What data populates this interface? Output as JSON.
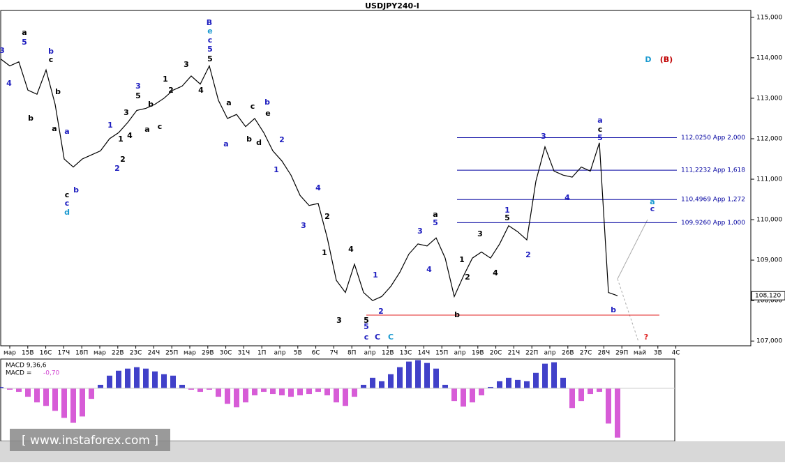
{
  "chart_data": {
    "type": "line",
    "title": "USDJPY240-I",
    "x_labels": [
      "мар",
      "15В",
      "16С",
      "17Ч",
      "18П",
      "мар",
      "22В",
      "23С",
      "24Ч",
      "25П",
      "мар",
      "29В",
      "30С",
      "31Ч",
      "1П",
      "апр",
      "5В",
      "6С",
      "7Ч",
      "8П",
      "апр",
      "12В",
      "13С",
      "14Ч",
      "15П",
      "апр",
      "19В",
      "20С",
      "21Ч",
      "22П",
      "апр",
      "26В",
      "27С",
      "28Ч",
      "29П",
      "май",
      "3В",
      "4С"
    ],
    "series": [
      {
        "color": "#000000",
        "values": [
          113.97,
          113.8,
          113.9,
          113.2,
          113.1,
          113.7,
          112.85,
          111.5,
          111.3,
          111.5,
          111.6,
          111.7,
          112.0,
          112.15,
          112.4,
          112.7,
          112.75,
          112.85,
          113.0,
          113.2,
          113.3,
          113.55,
          113.35,
          113.8,
          112.95,
          112.5,
          112.6,
          112.3,
          112.5,
          112.15,
          111.7,
          111.45,
          111.1,
          110.6,
          110.35,
          110.4,
          109.55,
          108.5,
          108.2,
          108.9,
          108.2,
          108.0,
          108.1,
          108.35,
          108.7,
          109.15,
          109.4,
          109.35,
          109.55,
          109.05,
          108.1,
          108.6,
          109.05,
          109.2,
          109.05,
          109.4,
          109.85,
          109.7,
          109.5,
          110.95,
          111.8,
          111.2,
          111.1,
          111.05,
          111.3,
          111.2,
          111.9,
          108.2,
          108.12
        ]
      }
    ],
    "ylim": [
      106.9,
      115.17
    ],
    "yticks": [
      {
        "value": 115,
        "label": "115,000"
      },
      {
        "value": 114,
        "label": "114,000"
      },
      {
        "value": 113,
        "label": "113,000"
      },
      {
        "value": 112,
        "label": "112,000"
      },
      {
        "value": 111,
        "label": "111,000"
      },
      {
        "value": 110,
        "label": "110,000"
      },
      {
        "value": 109,
        "label": "109,000"
      },
      {
        "value": 108,
        "label": "108,000"
      },
      {
        "value": 107,
        "label": "107,000"
      }
    ],
    "current_price": {
      "value": 108.12,
      "label": "108,120"
    },
    "fib_levels": [
      {
        "value": 112.025,
        "label": "112,0250 App 2,000",
        "color": "#0000a0"
      },
      {
        "value": 111.2232,
        "label": "111,2232 App 1,618",
        "color": "#0000a0"
      },
      {
        "value": 110.4969,
        "label": "110,4969 App 1,272",
        "color": "#0000a0"
      },
      {
        "value": 109.926,
        "label": "109,9260 App 1,000",
        "color": "#0000a0"
      }
    ],
    "support": {
      "value": 107.64,
      "color": "#e02020"
    },
    "macd": {
      "title": "MACD 9,36,6",
      "prefix": "MACD =",
      "value_label": "-0,70",
      "pos_color": "#2020c0",
      "neg_color": "#d040d0",
      "values": [
        0.02,
        -0.02,
        -0.05,
        -0.12,
        -0.2,
        -0.25,
        -0.32,
        -0.42,
        -0.49,
        -0.4,
        -0.15,
        0.05,
        0.18,
        0.25,
        0.28,
        0.3,
        0.28,
        0.24,
        0.2,
        0.18,
        0.05,
        -0.02,
        -0.05,
        -0.02,
        -0.12,
        -0.22,
        -0.27,
        -0.2,
        -0.1,
        -0.05,
        -0.08,
        -0.1,
        -0.12,
        -0.1,
        -0.08,
        -0.05,
        -0.1,
        -0.2,
        -0.25,
        -0.12,
        0.05,
        0.15,
        0.1,
        0.2,
        0.3,
        0.38,
        0.4,
        0.36,
        0.28,
        0.05,
        -0.18,
        -0.26,
        -0.2,
        -0.1,
        0.02,
        0.1,
        0.15,
        0.12,
        0.1,
        0.22,
        0.35,
        0.37,
        0.15,
        -0.28,
        -0.18,
        -0.08,
        -0.05,
        -0.5,
        -0.7
      ]
    },
    "annotations": [
      {
        "text": "3",
        "color": "#2020c0"
      },
      {
        "text": "4",
        "color": "#2020c0"
      },
      {
        "text": "a",
        "color": "#000"
      },
      {
        "text": "5",
        "color": "#2020c0"
      },
      {
        "text": "b",
        "color": "#000"
      },
      {
        "text": "b",
        "color": "#2020c0"
      },
      {
        "text": "c",
        "color": "#000"
      },
      {
        "text": "b",
        "color": "#000"
      },
      {
        "text": "a",
        "color": "#000"
      },
      {
        "text": "a",
        "color": "#2020c0"
      },
      {
        "text": "c",
        "color": "#000"
      },
      {
        "text": "c",
        "color": "#2020c0"
      },
      {
        "text": "d",
        "color": "#1a9ad0"
      },
      {
        "text": "b",
        "color": "#2020c0"
      },
      {
        "text": "1",
        "color": "#2020c0"
      },
      {
        "text": "2",
        "color": "#2020c0"
      },
      {
        "text": "3",
        "color": "#000"
      },
      {
        "text": "3",
        "color": "#2020c0"
      },
      {
        "text": "5",
        "color": "#000"
      },
      {
        "text": "4",
        "color": "#000"
      },
      {
        "text": "2",
        "color": "#000"
      },
      {
        "text": "1",
        "color": "#000"
      },
      {
        "text": "a",
        "color": "#000"
      },
      {
        "text": "b",
        "color": "#000"
      },
      {
        "text": "c",
        "color": "#000"
      },
      {
        "text": "1",
        "color": "#000"
      },
      {
        "text": "2",
        "color": "#000"
      },
      {
        "text": "3",
        "color": "#000"
      },
      {
        "text": "4",
        "color": "#000"
      },
      {
        "text": "B",
        "color": "#2020c0"
      },
      {
        "text": "e",
        "color": "#1a9ad0"
      },
      {
        "text": "c",
        "color": "#2020c0"
      },
      {
        "text": "5",
        "color": "#2020c0"
      },
      {
        "text": "5",
        "color": "#000"
      },
      {
        "text": "a",
        "color": "#000"
      },
      {
        "text": "a",
        "color": "#2020c0"
      },
      {
        "text": "b",
        "color": "#000"
      },
      {
        "text": "c",
        "color": "#000"
      },
      {
        "text": "d",
        "color": "#000"
      },
      {
        "text": "e",
        "color": "#000"
      },
      {
        "text": "b",
        "color": "#2020c0"
      },
      {
        "text": "2",
        "color": "#2020c0"
      },
      {
        "text": "1",
        "color": "#2020c0"
      },
      {
        "text": "4",
        "color": "#2020c0"
      },
      {
        "text": "3",
        "color": "#2020c0"
      },
      {
        "text": "2",
        "color": "#000"
      },
      {
        "text": "1",
        "color": "#000"
      },
      {
        "text": "4",
        "color": "#000"
      },
      {
        "text": "3",
        "color": "#000"
      },
      {
        "text": "5",
        "color": "#000"
      },
      {
        "text": "5",
        "color": "#2020c0"
      },
      {
        "text": "c",
        "color": "#2020c0"
      },
      {
        "text": "C",
        "color": "#2020c0"
      },
      {
        "text": "C",
        "color": "#1a9ad0"
      },
      {
        "text": "1",
        "color": "#2020c0"
      },
      {
        "text": "2",
        "color": "#2020c0"
      },
      {
        "text": "3",
        "color": "#2020c0"
      },
      {
        "text": "4",
        "color": "#2020c0"
      },
      {
        "text": "a",
        "color": "#000"
      },
      {
        "text": "5",
        "color": "#2020c0"
      },
      {
        "text": "1",
        "color": "#000"
      },
      {
        "text": "2",
        "color": "#000"
      },
      {
        "text": "3",
        "color": "#000"
      },
      {
        "text": "4",
        "color": "#000"
      },
      {
        "text": "b",
        "color": "#000"
      },
      {
        "text": "1",
        "color": "#2020c0"
      },
      {
        "text": "5",
        "color": "#000"
      },
      {
        "text": "2",
        "color": "#2020c0"
      },
      {
        "text": "3",
        "color": "#2020c0"
      },
      {
        "text": "4",
        "color": "#2020c0"
      },
      {
        "text": "a",
        "color": "#2020c0"
      },
      {
        "text": "c",
        "color": "#000"
      },
      {
        "text": "5",
        "color": "#2020c0"
      },
      {
        "text": "a",
        "color": "#1a9ad0"
      },
      {
        "text": "c",
        "color": "#2020c0"
      },
      {
        "text": "b",
        "color": "#2020c0"
      },
      {
        "text": "?",
        "color": "#e02020"
      },
      {
        "text": "D",
        "color": "#1a9ad0"
      },
      {
        "text": "(B)",
        "color": "#c00000"
      }
    ],
    "watermark": "[ www.instaforex.com ]"
  }
}
